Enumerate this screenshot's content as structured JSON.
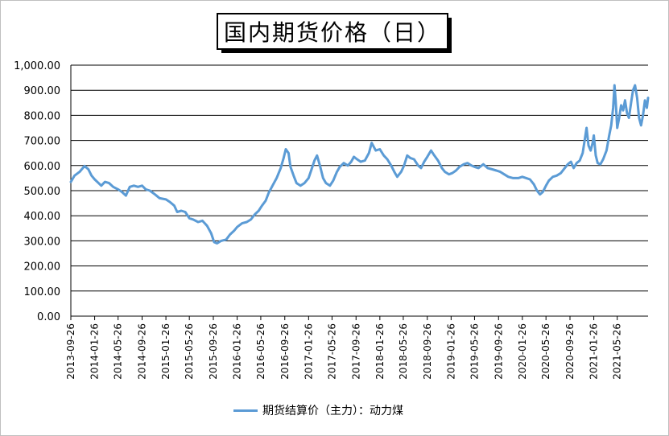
{
  "chart_data": {
    "type": "line",
    "title": "国内期货价格（日）",
    "xlabel": "",
    "ylabel": "",
    "ylim": [
      0,
      1000
    ],
    "yticks": [
      "0.00",
      "100.00",
      "200.00",
      "300.00",
      "400.00",
      "500.00",
      "600.00",
      "700.00",
      "800.00",
      "900.00",
      "1,000.00"
    ],
    "x_tick_labels": [
      "2013-09-26",
      "2014-01-26",
      "2014-05-26",
      "2014-09-26",
      "2015-01-26",
      "2015-05-26",
      "2015-09-26",
      "2016-01-26",
      "2016-05-26",
      "2016-09-26",
      "2017-01-26",
      "2017-05-26",
      "2017-09-26",
      "2018-01-26",
      "2018-05-26",
      "2018-09-26",
      "2019-01-26",
      "2019-05-26",
      "2019-09-26",
      "2020-01-26",
      "2020-05-26",
      "2020-09-26",
      "2021-01-26",
      "2021-05-26"
    ],
    "x_start": "2013-09-26",
    "x_end": "2021-10-31",
    "grid": true,
    "legend_position": "bottom",
    "series": [
      {
        "name": "期货结算价（主力）：动力煤",
        "color": "#5b9bd5",
        "points": [
          [
            "2013-09-26",
            535
          ],
          [
            "2013-10-15",
            560
          ],
          [
            "2013-11-10",
            575
          ],
          [
            "2013-12-05",
            598
          ],
          [
            "2013-12-25",
            585
          ],
          [
            "2014-01-10",
            560
          ],
          [
            "2014-01-26",
            545
          ],
          [
            "2014-02-15",
            530
          ],
          [
            "2014-03-01",
            520
          ],
          [
            "2014-03-20",
            535
          ],
          [
            "2014-04-10",
            530
          ],
          [
            "2014-05-01",
            515
          ],
          [
            "2014-05-26",
            505
          ],
          [
            "2014-06-15",
            495
          ],
          [
            "2014-07-05",
            480
          ],
          [
            "2014-07-25",
            515
          ],
          [
            "2014-08-15",
            520
          ],
          [
            "2014-09-05",
            515
          ],
          [
            "2014-09-26",
            520
          ],
          [
            "2014-10-15",
            505
          ],
          [
            "2014-11-05",
            500
          ],
          [
            "2014-12-01",
            485
          ],
          [
            "2014-12-25",
            470
          ],
          [
            "2015-01-26",
            465
          ],
          [
            "2015-02-15",
            455
          ],
          [
            "2015-03-10",
            440
          ],
          [
            "2015-03-25",
            415
          ],
          [
            "2015-04-15",
            420
          ],
          [
            "2015-05-05",
            415
          ],
          [
            "2015-05-26",
            390
          ],
          [
            "2015-06-15",
            385
          ],
          [
            "2015-07-10",
            375
          ],
          [
            "2015-08-01",
            380
          ],
          [
            "2015-08-25",
            360
          ],
          [
            "2015-09-15",
            330
          ],
          [
            "2015-09-30",
            295
          ],
          [
            "2015-10-15",
            290
          ],
          [
            "2015-11-05",
            300
          ],
          [
            "2015-12-01",
            305
          ],
          [
            "2015-12-20",
            325
          ],
          [
            "2016-01-10",
            340
          ],
          [
            "2016-01-26",
            355
          ],
          [
            "2016-02-20",
            370
          ],
          [
            "2016-03-15",
            375
          ],
          [
            "2016-04-05",
            385
          ],
          [
            "2016-04-25",
            405
          ],
          [
            "2016-05-15",
            420
          ],
          [
            "2016-06-01",
            440
          ],
          [
            "2016-06-20",
            460
          ],
          [
            "2016-07-05",
            490
          ],
          [
            "2016-07-25",
            520
          ],
          [
            "2016-08-15",
            550
          ],
          [
            "2016-09-05",
            590
          ],
          [
            "2016-09-20",
            630
          ],
          [
            "2016-10-01",
            665
          ],
          [
            "2016-10-15",
            650
          ],
          [
            "2016-10-25",
            595
          ],
          [
            "2016-11-10",
            560
          ],
          [
            "2016-11-25",
            530
          ],
          [
            "2016-12-15",
            520
          ],
          [
            "2017-01-05",
            530
          ],
          [
            "2017-01-26",
            550
          ],
          [
            "2017-02-10",
            585
          ],
          [
            "2017-02-25",
            620
          ],
          [
            "2017-03-10",
            640
          ],
          [
            "2017-03-25",
            600
          ],
          [
            "2017-04-10",
            550
          ],
          [
            "2017-04-25",
            530
          ],
          [
            "2017-05-15",
            520
          ],
          [
            "2017-06-01",
            540
          ],
          [
            "2017-06-20",
            575
          ],
          [
            "2017-07-05",
            595
          ],
          [
            "2017-07-25",
            610
          ],
          [
            "2017-08-15",
            600
          ],
          [
            "2017-09-01",
            615
          ],
          [
            "2017-09-15",
            635
          ],
          [
            "2017-10-01",
            625
          ],
          [
            "2017-10-20",
            615
          ],
          [
            "2017-11-10",
            620
          ],
          [
            "2017-12-01",
            650
          ],
          [
            "2017-12-15",
            690
          ],
          [
            "2018-01-05",
            660
          ],
          [
            "2018-01-26",
            665
          ],
          [
            "2018-02-15",
            640
          ],
          [
            "2018-03-05",
            625
          ],
          [
            "2018-03-25",
            600
          ],
          [
            "2018-04-10",
            575
          ],
          [
            "2018-04-25",
            555
          ],
          [
            "2018-05-15",
            575
          ],
          [
            "2018-05-30",
            600
          ],
          [
            "2018-06-15",
            640
          ],
          [
            "2018-07-01",
            630
          ],
          [
            "2018-07-20",
            625
          ],
          [
            "2018-08-10",
            600
          ],
          [
            "2018-08-25",
            590
          ],
          [
            "2018-09-10",
            615
          ],
          [
            "2018-09-26",
            635
          ],
          [
            "2018-10-15",
            660
          ],
          [
            "2018-11-01",
            640
          ],
          [
            "2018-11-20",
            620
          ],
          [
            "2018-12-10",
            590
          ],
          [
            "2018-12-25",
            575
          ],
          [
            "2019-01-15",
            565
          ],
          [
            "2019-02-01",
            570
          ],
          [
            "2019-02-20",
            580
          ],
          [
            "2019-03-10",
            595
          ],
          [
            "2019-04-01",
            605
          ],
          [
            "2019-04-20",
            610
          ],
          [
            "2019-05-10",
            600
          ],
          [
            "2019-05-26",
            595
          ],
          [
            "2019-06-15",
            590
          ],
          [
            "2019-07-10",
            605
          ],
          [
            "2019-08-01",
            590
          ],
          [
            "2019-08-25",
            585
          ],
          [
            "2019-09-15",
            580
          ],
          [
            "2019-10-05",
            575
          ],
          [
            "2019-10-25",
            565
          ],
          [
            "2019-11-15",
            555
          ],
          [
            "2019-12-10",
            550
          ],
          [
            "2020-01-05",
            550
          ],
          [
            "2020-01-26",
            555
          ],
          [
            "2020-02-15",
            550
          ],
          [
            "2020-03-05",
            545
          ],
          [
            "2020-03-25",
            525
          ],
          [
            "2020-04-10",
            500
          ],
          [
            "2020-04-25",
            485
          ],
          [
            "2020-05-10",
            495
          ],
          [
            "2020-05-26",
            520
          ],
          [
            "2020-06-10",
            540
          ],
          [
            "2020-06-30",
            555
          ],
          [
            "2020-07-20",
            560
          ],
          [
            "2020-08-10",
            570
          ],
          [
            "2020-08-30",
            590
          ],
          [
            "2020-09-15",
            605
          ],
          [
            "2020-10-01",
            615
          ],
          [
            "2020-10-15",
            590
          ],
          [
            "2020-10-30",
            610
          ],
          [
            "2020-11-15",
            620
          ],
          [
            "2020-11-30",
            650
          ],
          [
            "2020-12-10",
            700
          ],
          [
            "2020-12-20",
            750
          ],
          [
            "2020-12-30",
            680
          ],
          [
            "2021-01-10",
            660
          ],
          [
            "2021-01-20",
            690
          ],
          [
            "2021-01-26",
            720
          ],
          [
            "2021-02-05",
            640
          ],
          [
            "2021-02-15",
            610
          ],
          [
            "2021-03-01",
            605
          ],
          [
            "2021-03-15",
            625
          ],
          [
            "2021-04-01",
            660
          ],
          [
            "2021-04-15",
            720
          ],
          [
            "2021-04-25",
            760
          ],
          [
            "2021-05-05",
            830
          ],
          [
            "2021-05-12",
            920
          ],
          [
            "2021-05-18",
            860
          ],
          [
            "2021-05-26",
            750
          ],
          [
            "2021-06-05",
            790
          ],
          [
            "2021-06-15",
            840
          ],
          [
            "2021-06-25",
            820
          ],
          [
            "2021-07-05",
            860
          ],
          [
            "2021-07-15",
            810
          ],
          [
            "2021-07-25",
            790
          ],
          [
            "2021-08-05",
            850
          ],
          [
            "2021-08-15",
            900
          ],
          [
            "2021-08-25",
            920
          ],
          [
            "2021-09-05",
            870
          ],
          [
            "2021-09-15",
            790
          ],
          [
            "2021-09-25",
            760
          ],
          [
            "2021-10-05",
            800
          ],
          [
            "2021-10-15",
            860
          ],
          [
            "2021-10-25",
            830
          ],
          [
            "2021-10-31",
            870
          ]
        ]
      }
    ]
  }
}
